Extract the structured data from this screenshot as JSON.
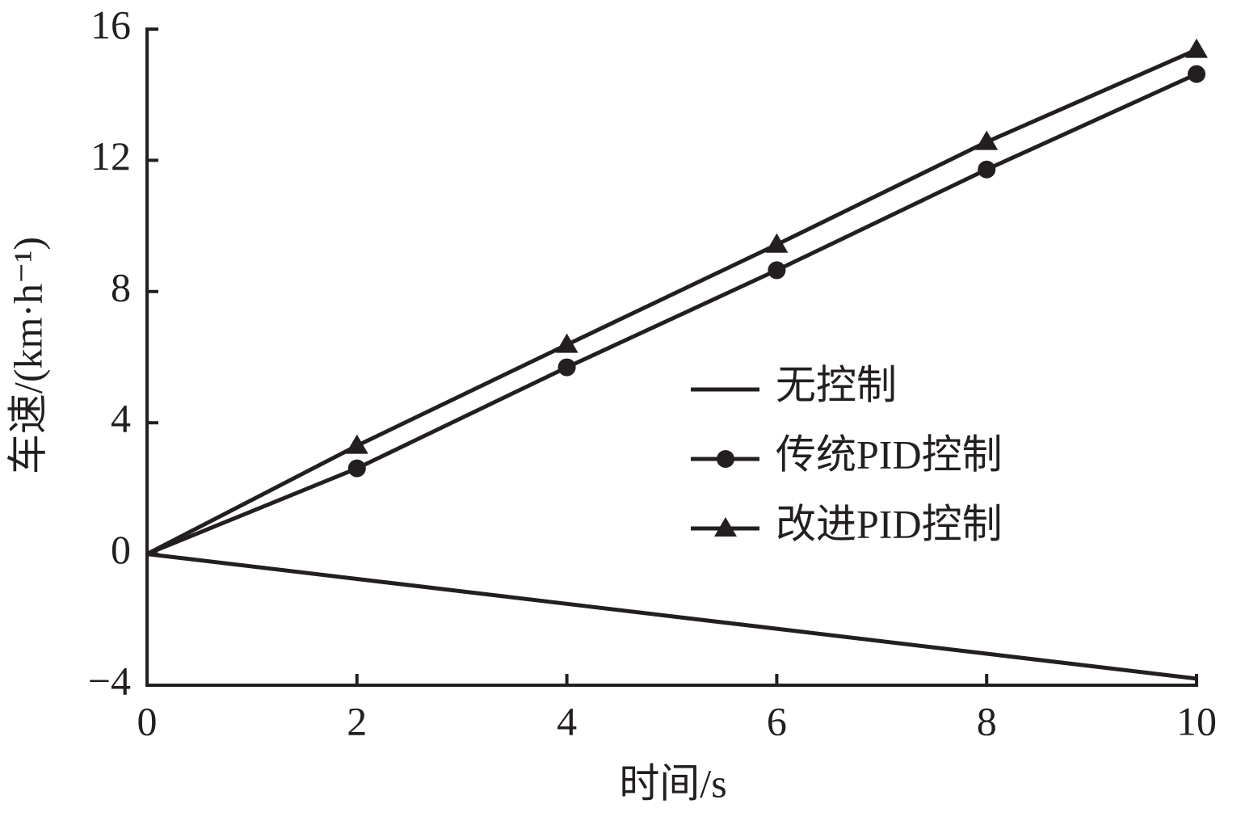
{
  "chart_data": {
    "type": "line",
    "x_label": "时间/s",
    "y_label": "车速/(km·h⁻¹)",
    "x": [
      0,
      2,
      4,
      6,
      8,
      10
    ],
    "series": [
      {
        "name": "无控制",
        "color": "#231f20",
        "marker": "none",
        "values": [
          0,
          -0.76,
          -1.52,
          -2.28,
          -3.04,
          -3.8
        ]
      },
      {
        "name": "传统PID控制",
        "color": "#231f20",
        "marker": "circle",
        "values": [
          0,
          2.61,
          5.69,
          8.65,
          11.72,
          14.63
        ]
      },
      {
        "name": "改进PID控制",
        "color": "#231f20",
        "marker": "triangle",
        "values": [
          0,
          3.3,
          6.38,
          9.43,
          12.56,
          15.37
        ]
      }
    ],
    "xlim": [
      0,
      10
    ],
    "xticks": [
      0,
      2,
      4,
      6,
      8,
      10
    ],
    "ylim": [
      -4,
      16
    ],
    "yticks": [
      {
        "value": -4,
        "label": "−4"
      },
      0,
      4,
      8,
      12,
      16
    ],
    "grid": false,
    "legend": "center right"
  }
}
